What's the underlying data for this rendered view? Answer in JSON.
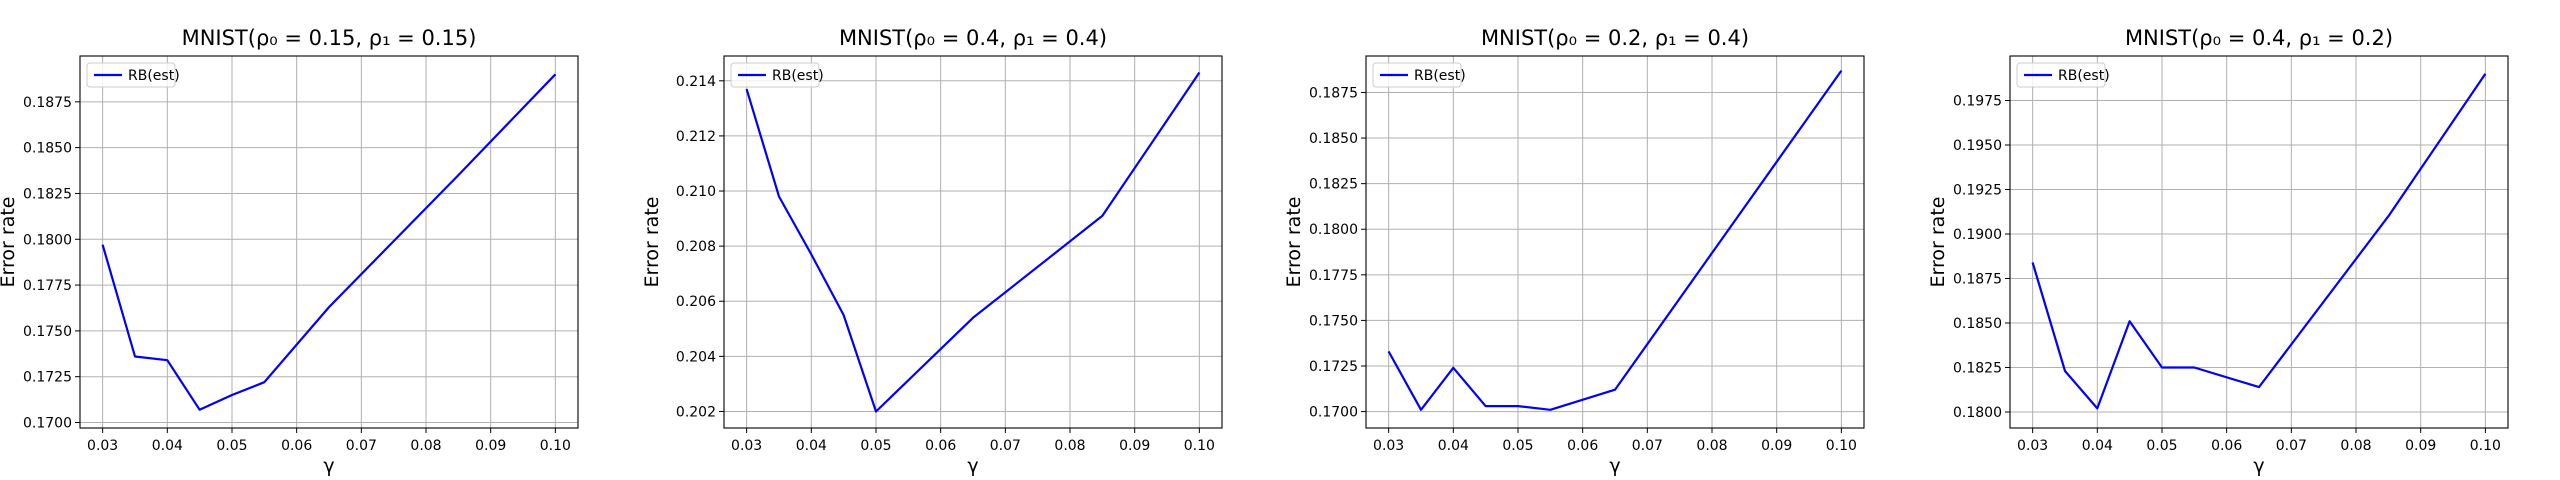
{
  "chart_data": [
    {
      "type": "line",
      "title": "MNIST(ρ₀ = 0.15, ρ₁ = 0.15)",
      "xlabel": "γ",
      "ylabel": "Error rate",
      "xlim": [
        0.0265,
        0.1035
      ],
      "ylim": [
        0.1697,
        0.19
      ],
      "xticks": [
        0.03,
        0.04,
        0.05,
        0.06,
        0.07,
        0.08,
        0.09,
        0.1
      ],
      "xtick_labels": [
        "0.03",
        "0.04",
        "0.05",
        "0.06",
        "0.07",
        "0.08",
        "0.09",
        "0.10"
      ],
      "yticks": [
        0.17,
        0.1725,
        0.175,
        0.1775,
        0.18,
        0.1825,
        0.185,
        0.1875
      ],
      "ytick_labels": [
        "0.1700",
        "0.1725",
        "0.1750",
        "0.1775",
        "0.1800",
        "0.1825",
        "0.1850",
        "0.1875"
      ],
      "grid": true,
      "legend": "upper left",
      "series": [
        {
          "name": "RB(est)",
          "color": "#0000ff",
          "x": [
            0.03,
            0.035,
            0.04,
            0.045,
            0.05,
            0.055,
            0.065,
            0.085,
            0.1
          ],
          "y": [
            0.1797,
            0.1736,
            0.1734,
            0.1707,
            0.1715,
            0.1722,
            0.1763,
            0.1835,
            0.189
          ]
        }
      ]
    },
    {
      "type": "line",
      "title": "MNIST(ρ₀ = 0.4, ρ₁ = 0.4)",
      "xlabel": "γ",
      "ylabel": "Error rate",
      "xlim": [
        0.0265,
        0.1035
      ],
      "ylim": [
        0.2014,
        0.2149
      ],
      "xticks": [
        0.03,
        0.04,
        0.05,
        0.06,
        0.07,
        0.08,
        0.09,
        0.1
      ],
      "xtick_labels": [
        "0.03",
        "0.04",
        "0.05",
        "0.06",
        "0.07",
        "0.08",
        "0.09",
        "0.10"
      ],
      "yticks": [
        0.202,
        0.204,
        0.206,
        0.208,
        0.21,
        0.212,
        0.214
      ],
      "ytick_labels": [
        "0.202",
        "0.204",
        "0.206",
        "0.208",
        "0.210",
        "0.212",
        "0.214"
      ],
      "grid": true,
      "legend": "upper left",
      "series": [
        {
          "name": "RB(est)",
          "color": "#0000ff",
          "x": [
            0.03,
            0.035,
            0.04,
            0.045,
            0.05,
            0.065,
            0.085,
            0.1
          ],
          "y": [
            0.2137,
            0.2098,
            0.2077,
            0.2055,
            0.202,
            0.2054,
            0.2091,
            0.2143
          ]
        }
      ]
    },
    {
      "type": "line",
      "title": "MNIST(ρ₀ = 0.2, ρ₁ = 0.4)",
      "xlabel": "γ",
      "ylabel": "Error rate",
      "xlim": [
        0.0265,
        0.1035
      ],
      "ylim": [
        0.1691,
        0.1895
      ],
      "xticks": [
        0.03,
        0.04,
        0.05,
        0.06,
        0.07,
        0.08,
        0.09,
        0.1
      ],
      "xtick_labels": [
        "0.03",
        "0.04",
        "0.05",
        "0.06",
        "0.07",
        "0.08",
        "0.09",
        "0.10"
      ],
      "yticks": [
        0.17,
        0.1725,
        0.175,
        0.1775,
        0.18,
        0.1825,
        0.185,
        0.1875
      ],
      "ytick_labels": [
        "0.1700",
        "0.1725",
        "0.1750",
        "0.1775",
        "0.1800",
        "0.1825",
        "0.1850",
        "0.1875"
      ],
      "grid": true,
      "legend": "upper left",
      "series": [
        {
          "name": "RB(est)",
          "color": "#0000ff",
          "x": [
            0.03,
            0.035,
            0.04,
            0.045,
            0.05,
            0.055,
            0.065,
            0.1
          ],
          "y": [
            0.1733,
            0.1701,
            0.1724,
            0.1703,
            0.1703,
            0.1701,
            0.1712,
            0.1887
          ]
        }
      ]
    },
    {
      "type": "line",
      "title": "MNIST(ρ₀ = 0.4, ρ₁ = 0.2)",
      "xlabel": "γ",
      "ylabel": "Error rate",
      "xlim": [
        0.0265,
        0.1035
      ],
      "ylim": [
        0.1791,
        0.2
      ],
      "xticks": [
        0.03,
        0.04,
        0.05,
        0.06,
        0.07,
        0.08,
        0.09,
        0.1
      ],
      "xtick_labels": [
        "0.03",
        "0.04",
        "0.05",
        "0.06",
        "0.07",
        "0.08",
        "0.09",
        "0.10"
      ],
      "yticks": [
        0.18,
        0.1825,
        0.185,
        0.1875,
        0.19,
        0.1925,
        0.195,
        0.1975
      ],
      "ytick_labels": [
        "0.1800",
        "0.1825",
        "0.1850",
        "0.1875",
        "0.1900",
        "0.1925",
        "0.1950",
        "0.1975"
      ],
      "grid": true,
      "legend": "upper left",
      "series": [
        {
          "name": "RB(est)",
          "color": "#0000ff",
          "x": [
            0.03,
            0.035,
            0.04,
            0.045,
            0.05,
            0.055,
            0.065,
            0.085,
            0.1
          ],
          "y": [
            0.1884,
            0.1823,
            0.1802,
            0.1851,
            0.1825,
            0.1825,
            0.1814,
            0.191,
            0.199
          ]
        }
      ]
    }
  ]
}
